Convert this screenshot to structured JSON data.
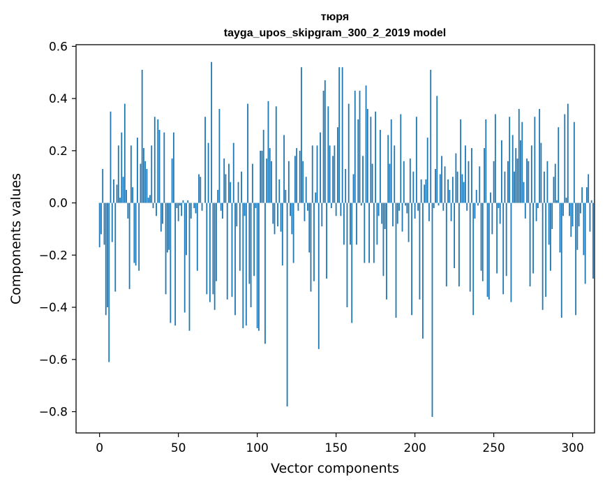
{
  "chart_data": {
    "type": "bar",
    "title_line1": "тюря",
    "title_line2": "tayga_upos_skipgram_300_2_2019 model",
    "xlabel": "Vector components",
    "ylabel": "Components values",
    "xlim": [
      -14.9,
      313.9
    ],
    "ylim": [
      -0.8815,
      0.6063
    ],
    "xticks": [
      0,
      50,
      100,
      150,
      200,
      250,
      300
    ],
    "xtick_labels": [
      "0",
      "50",
      "100",
      "150",
      "200",
      "250",
      "300"
    ],
    "yticks": [
      -0.8,
      -0.6,
      -0.4,
      -0.2,
      0.0,
      0.2,
      0.4,
      0.6
    ],
    "ytick_labels": [
      "−0.8",
      "−0.6",
      "−0.4",
      "−0.2",
      "0.0",
      "0.2",
      "0.4",
      "0.6"
    ],
    "grid": false,
    "bar_color": "#1f77b4",
    "values": [
      -0.17,
      -0.12,
      0.13,
      -0.16,
      -0.43,
      -0.4,
      -0.61,
      0.35,
      -0.15,
      0.09,
      -0.34,
      0.07,
      0.22,
      0.02,
      0.27,
      0.1,
      0.38,
      0.05,
      -0.06,
      -0.33,
      0.22,
      0.06,
      -0.23,
      -0.24,
      0.25,
      -0.26,
      0.15,
      0.51,
      0.21,
      0.16,
      0.13,
      0.02,
      0.03,
      0.22,
      -0.02,
      0.33,
      -0.05,
      0.32,
      0.28,
      -0.11,
      -0.08,
      0.27,
      -0.35,
      -0.19,
      -0.18,
      -0.46,
      0.17,
      0.27,
      -0.47,
      -0.02,
      -0.07,
      -0.01,
      -0.05,
      0.01,
      -0.42,
      -0.2,
      0.01,
      -0.49,
      -0.06,
      0.0,
      -0.02,
      -0.04,
      -0.26,
      0.11,
      0.1,
      -0.03,
      0.0,
      0.33,
      -0.35,
      0.23,
      -0.38,
      0.54,
      -0.35,
      -0.41,
      -0.3,
      0.05,
      0.36,
      -0.03,
      -0.06,
      0.17,
      0.11,
      -0.37,
      0.15,
      0.08,
      -0.36,
      0.23,
      -0.43,
      -0.09,
      0.08,
      -0.26,
      0.12,
      -0.48,
      -0.05,
      -0.47,
      0.38,
      -0.31,
      -0.4,
      0.15,
      -0.28,
      -0.02,
      -0.48,
      -0.49,
      0.2,
      0.2,
      0.28,
      -0.54,
      0.17,
      0.39,
      0.21,
      0.16,
      -0.08,
      -0.12,
      0.37,
      -0.09,
      0.09,
      -0.11,
      -0.24,
      0.26,
      0.05,
      -0.78,
      0.16,
      -0.05,
      -0.12,
      -0.23,
      0.18,
      0.21,
      -0.03,
      0.2,
      0.52,
      0.16,
      -0.07,
      0.1,
      -0.03,
      -0.19,
      -0.34,
      0.22,
      -0.3,
      0.04,
      0.22,
      -0.56,
      0.27,
      -0.09,
      0.43,
      0.47,
      -0.29,
      0.37,
      0.22,
      -0.02,
      0.18,
      0.22,
      -0.05,
      0.29,
      0.52,
      -0.05,
      0.52,
      -0.16,
      0.13,
      -0.4,
      0.38,
      -0.16,
      -0.46,
      0.11,
      0.43,
      -0.16,
      0.32,
      0.43,
      -0.01,
      0.18,
      -0.23,
      0.45,
      0.36,
      -0.23,
      0.33,
      0.15,
      -0.23,
      0.35,
      -0.16,
      -0.05,
      0.28,
      -0.08,
      -0.28,
      -0.1,
      -0.37,
      0.26,
      0.15,
      0.32,
      -0.09,
      0.22,
      -0.44,
      -0.08,
      -0.03,
      0.34,
      -0.11,
      0.16,
      -0.01,
      -0.04,
      -0.15,
      0.17,
      -0.43,
      0.12,
      -0.06,
      0.33,
      -0.03,
      -0.37,
      0.09,
      -0.52,
      0.07,
      0.09,
      0.25,
      -0.07,
      0.51,
      -0.82,
      -0.02,
      0.13,
      0.41,
      -0.01,
      0.11,
      0.18,
      -0.03,
      0.14,
      -0.32,
      0.09,
      0.05,
      -0.07,
      0.1,
      -0.25,
      0.19,
      0.12,
      -0.32,
      0.32,
      0.11,
      0.08,
      0.22,
      -0.03,
      0.16,
      -0.34,
      0.21,
      -0.43,
      -0.06,
      0.05,
      -0.01,
      0.14,
      -0.26,
      -0.3,
      0.21,
      0.32,
      -0.36,
      -0.37,
      0.04,
      -0.12,
      0.16,
      0.34,
      -0.27,
      -0.02,
      -0.08,
      0.24,
      -0.35,
      0.12,
      -0.28,
      0.16,
      0.33,
      -0.38,
      0.26,
      0.12,
      0.21,
      0.17,
      0.36,
      0.24,
      0.31,
      0.08,
      -0.06,
      0.17,
      0.16,
      -0.32,
      0.22,
      -0.27,
      0.33,
      -0.07,
      -0.02,
      0.36,
      0.23,
      -0.41,
      0.12,
      -0.36,
      0.16,
      -0.16,
      -0.26,
      -0.1,
      0.1,
      0.15,
      0.01,
      0.29,
      -0.19,
      -0.44,
      -0.05,
      0.34,
      0.02,
      0.38,
      -0.05,
      -0.13,
      -0.09,
      0.31,
      -0.43,
      -0.18,
      -0.09,
      -0.04,
      0.06,
      -0.2,
      -0.31,
      0.06,
      0.11,
      -0.11,
      0.01,
      -0.29
    ]
  }
}
